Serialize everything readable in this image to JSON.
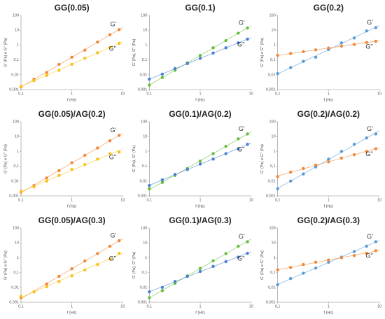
{
  "chart_data": [
    {
      "type": "scatter",
      "title": "GG(0.05)",
      "xlabel": "f (Hz)",
      "ylabel": "G' (Pa) e G'' (Pa)",
      "log": true,
      "x": [
        0.1,
        0.18,
        0.32,
        0.56,
        1,
        1.8,
        3.2,
        5.6,
        8.5
      ],
      "xlim": [
        0.1,
        10
      ],
      "xticks": [
        {
          "value": 0.1,
          "label": "0,1"
        },
        1,
        10
      ],
      "ylim": [
        0.001,
        100
      ],
      "yticks": [
        {
          "value": 0.001,
          "label": "0,001"
        },
        {
          "value": 0.01,
          "label": "0,01"
        },
        {
          "value": 0.1,
          "label": "0,1"
        },
        1,
        10,
        100
      ],
      "series": [
        {
          "name": "G'",
          "color": "#f0883a",
          "values": [
            0.0015,
            0.005,
            0.014,
            0.05,
            0.15,
            0.45,
            1.6,
            5,
            11
          ]
        },
        {
          "name": "G''",
          "color": "#f7c21e",
          "values": [
            0.0016,
            0.004,
            0.009,
            0.02,
            0.05,
            0.13,
            0.3,
            0.7,
            1.3
          ]
        }
      ]
    },
    {
      "type": "scatter",
      "title": "GG(0.1)",
      "xlabel": "f (Hz)",
      "ylabel": "G' (Pa), G'' (Pa)",
      "log": true,
      "x": [
        0.1,
        0.18,
        0.32,
        0.56,
        1,
        1.8,
        3.2,
        5.6,
        8.5
      ],
      "xlim": [
        0.1,
        10
      ],
      "xticks": [
        0.1,
        1,
        10
      ],
      "ylim": [
        0.001,
        100
      ],
      "yticks": [
        0.001,
        0.01,
        0.1,
        1,
        10,
        100
      ],
      "series": [
        {
          "name": "G'",
          "color": "#69bd3d",
          "values": [
            0.002,
            0.0065,
            0.02,
            0.063,
            0.2,
            0.65,
            2,
            6.3,
            14
          ]
        },
        {
          "name": "G''",
          "color": "#4a7fd4",
          "values": [
            0.005,
            0.011,
            0.026,
            0.056,
            0.126,
            0.29,
            0.65,
            1.4,
            2.5
          ]
        }
      ]
    },
    {
      "type": "scatter",
      "title": "GG(0.2)",
      "xlabel": "f (Hz)",
      "ylabel": "G' (Pa) e G'' (Pa)",
      "log": true,
      "x": [
        0.1,
        0.18,
        0.32,
        0.56,
        1,
        1.8,
        3.2,
        5.6,
        8.5
      ],
      "xlim": [
        0.1,
        10
      ],
      "xticks": [
        {
          "value": 0.1,
          "label": "0,1"
        },
        1,
        10
      ],
      "ylim": [
        0.001,
        100
      ],
      "yticks": [
        {
          "value": 0.001,
          "label": "0,001"
        },
        {
          "value": 0.01,
          "label": "0,01"
        },
        {
          "value": 0.1,
          "label": "0,1"
        },
        1,
        10,
        100
      ],
      "series": [
        {
          "name": "G'",
          "color": "#5b9bd5",
          "values": [
            0.012,
            0.03,
            0.08,
            0.15,
            0.5,
            1.4,
            3,
            9,
            15
          ]
        },
        {
          "name": "G''",
          "color": "#f0883a",
          "values": [
            0.2,
            0.27,
            0.36,
            0.47,
            0.63,
            0.85,
            1.1,
            1.5,
            1.8
          ]
        }
      ]
    },
    {
      "type": "scatter",
      "title": "GG(0.05)/AG(0.2)",
      "xlabel": "f (Hz)",
      "ylabel": "G' (Pa) e G'' (Pa)",
      "log": true,
      "x": [
        0.1,
        0.18,
        0.32,
        0.56,
        1,
        1.8,
        3.2,
        5.6,
        8.5
      ],
      "xlim": [
        0.1,
        10
      ],
      "xticks": [
        {
          "value": 0.1,
          "label": "0,1"
        },
        1,
        10
      ],
      "ylim": [
        0.001,
        100
      ],
      "yticks": [
        {
          "value": 0.001,
          "label": "0,001"
        },
        {
          "value": 0.01,
          "label": "0,01"
        },
        {
          "value": 0.1,
          "label": "0,1"
        },
        1,
        10,
        100
      ],
      "series": [
        {
          "name": "G'",
          "color": "#f0883a",
          "values": [
            0.0018,
            0.005,
            0.016,
            0.05,
            0.17,
            0.55,
            1.7,
            5.2,
            12
          ]
        },
        {
          "name": "G''",
          "color": "#f7c21e",
          "values": [
            0.002,
            0.004,
            0.01,
            0.024,
            0.06,
            0.13,
            0.3,
            0.7,
            0.9
          ]
        }
      ]
    },
    {
      "type": "scatter",
      "title": "GG(0.1)/AG(0.2)",
      "xlabel": "f (Hz)",
      "ylabel": "G' (Pa), G'' (Pa)",
      "log": true,
      "x": [
        0.1,
        0.18,
        0.32,
        0.56,
        1,
        1.8,
        3.2,
        5.6,
        8.5
      ],
      "xlim": [
        0.1,
        10
      ],
      "xticks": [
        0.1,
        1,
        10
      ],
      "ylim": [
        0.001,
        100
      ],
      "yticks": [
        0.001,
        0.01,
        0.1,
        1,
        10,
        100
      ],
      "series": [
        {
          "name": "G'",
          "color": "#69bd3d",
          "values": [
            0.003,
            0.008,
            0.024,
            0.07,
            0.22,
            0.7,
            2.2,
            7,
            15
          ]
        },
        {
          "name": "G''",
          "color": "#4a7fd4",
          "values": [
            0.005,
            0.012,
            0.028,
            0.06,
            0.14,
            0.3,
            0.7,
            1.5,
            3
          ]
        }
      ]
    },
    {
      "type": "scatter",
      "title": "GG(0.2)/AG(0.2)",
      "xlabel": "f (Hz)",
      "ylabel": "G' (Pa) e G'' (Pa)",
      "log": true,
      "x": [
        0.1,
        0.18,
        0.32,
        0.56,
        1,
        1.8,
        3.2,
        5.6,
        8.5
      ],
      "xlim": [
        0.1,
        10
      ],
      "xticks": [
        {
          "value": 0.1,
          "label": "0,1"
        },
        1,
        10
      ],
      "ylim": [
        0.001,
        100
      ],
      "yticks": [
        {
          "value": 0.001,
          "label": "0,001"
        },
        {
          "value": 0.01,
          "label": "0,01"
        },
        {
          "value": 0.1,
          "label": "0,1"
        },
        1,
        10,
        100
      ],
      "series": [
        {
          "name": "G'",
          "color": "#5b9bd5",
          "values": [
            0.003,
            0.01,
            0.03,
            0.09,
            0.3,
            1,
            3,
            8,
            15
          ]
        },
        {
          "name": "G''",
          "color": "#f0883a",
          "values": [
            0.02,
            0.04,
            0.07,
            0.12,
            0.2,
            0.35,
            0.6,
            1,
            1.5
          ]
        }
      ]
    },
    {
      "type": "scatter",
      "title": "GG(0.05)/AG(0.3)",
      "xlabel": "f (Hz)",
      "ylabel": "G' (Pa) e G'' (Pa)",
      "log": true,
      "x": [
        0.1,
        0.18,
        0.32,
        0.56,
        1,
        1.8,
        3.2,
        5.6,
        8.5
      ],
      "xlim": [
        0.1,
        10
      ],
      "xticks": [
        {
          "value": 0.1,
          "label": "0,1"
        },
        1,
        10
      ],
      "ylim": [
        0.001,
        100
      ],
      "yticks": [
        {
          "value": 0.001,
          "label": "0,001"
        },
        {
          "value": 0.01,
          "label": "0,01"
        },
        {
          "value": 0.1,
          "label": "0,1"
        },
        1,
        10,
        100
      ],
      "series": [
        {
          "name": "G'",
          "color": "#f0883a",
          "values": [
            0.002,
            0.005,
            0.017,
            0.055,
            0.18,
            0.6,
            1.9,
            6,
            14
          ]
        },
        {
          "name": "G''",
          "color": "#f7c21e",
          "values": [
            0.0025,
            0.005,
            0.011,
            0.025,
            0.06,
            0.15,
            0.35,
            0.8,
            2
          ]
        }
      ]
    },
    {
      "type": "scatter",
      "title": "GG(0.1)/AG(0.3)",
      "xlabel": "f (Hz)",
      "ylabel": "G' (Pa), G'' (Pa)",
      "log": true,
      "x": [
        0.1,
        0.18,
        0.32,
        0.56,
        1,
        1.8,
        3.2,
        5.6,
        8.5
      ],
      "xlim": [
        0.1,
        10
      ],
      "xticks": [
        0.1,
        1,
        10
      ],
      "ylim": [
        0.001,
        100
      ],
      "yticks": [
        0.001,
        0.01,
        0.1,
        1,
        10,
        100
      ],
      "series": [
        {
          "name": "G'",
          "color": "#69bd3d",
          "values": [
            0.002,
            0.006,
            0.019,
            0.06,
            0.19,
            0.62,
            1.9,
            6,
            12
          ]
        },
        {
          "name": "G''",
          "color": "#4a7fd4",
          "values": [
            0.005,
            0.01,
            0.025,
            0.055,
            0.12,
            0.26,
            0.55,
            1.1,
            2
          ]
        }
      ]
    },
    {
      "type": "scatter",
      "title": "GG(0.2)/AG(0.3)",
      "xlabel": "f (Hz)",
      "ylabel": "G' (Pa) e G'' (Pa)",
      "log": true,
      "x": [
        0.1,
        0.18,
        0.32,
        0.56,
        1,
        1.8,
        3.2,
        5.6,
        8.5
      ],
      "xlim": [
        0.1,
        10
      ],
      "xticks": [
        {
          "value": 0.1,
          "label": "0,1"
        },
        1,
        10
      ],
      "ylim": [
        0.001,
        100
      ],
      "yticks": [
        {
          "value": 0.001,
          "label": "0,001"
        },
        {
          "value": 0.01,
          "label": "0,01"
        },
        {
          "value": 0.1,
          "label": "0,1"
        },
        1,
        10,
        100
      ],
      "series": [
        {
          "name": "G'",
          "color": "#5b9bd5",
          "values": [
            0.015,
            0.04,
            0.09,
            0.2,
            0.5,
            1.1,
            2.6,
            6,
            12
          ]
        },
        {
          "name": "G''",
          "color": "#f0883a",
          "values": [
            0.15,
            0.22,
            0.35,
            0.5,
            0.7,
            1,
            1.4,
            2,
            3
          ]
        }
      ]
    }
  ]
}
